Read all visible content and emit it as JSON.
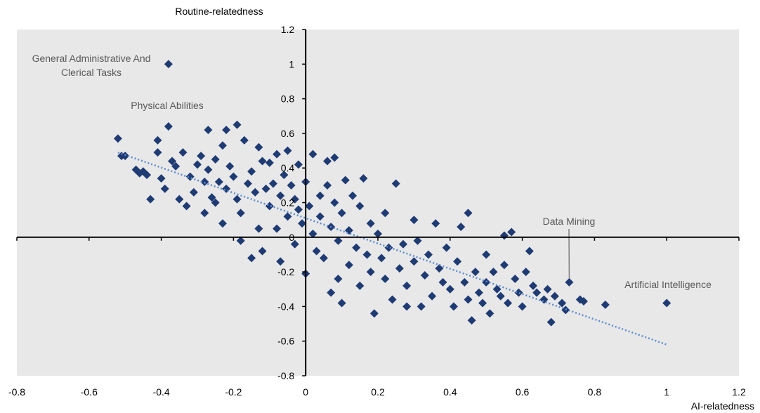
{
  "chart_data": {
    "type": "scatter",
    "xlabel": "AI-relatedness",
    "ylabel": "Routine-relatedness",
    "xlim": [
      -0.8,
      1.2
    ],
    "ylim": [
      -0.8,
      1.2
    ],
    "x_ticks": [
      "-0.8",
      "-0.6",
      "-0.4",
      "-0.2",
      "0",
      "0.2",
      "0.4",
      "0.6",
      "0.8",
      "1",
      "1.2"
    ],
    "y_ticks": [
      "1.2",
      "1",
      "0.8",
      "0.6",
      "0.4",
      "0.2",
      "0",
      "-0.2",
      "-0.4",
      "-0.6",
      "-0.8"
    ],
    "grid": false,
    "background_color": "#e8e8e8",
    "marker_color": "#1f3b73",
    "trendline": {
      "style": "dotted",
      "color": "#5b8bd0",
      "x_start": -0.52,
      "y_start": 0.49,
      "x_end": 1.0,
      "y_end": -0.62
    },
    "annotations": [
      {
        "text": "General Administrative And Clerical Tasks",
        "lines": [
          "General Administrative And",
          "Clerical Tasks"
        ],
        "x": -0.38,
        "y": 1.0
      },
      {
        "text": "Physical Abilities",
        "lines": [
          "Physical Abilities"
        ],
        "x": -0.38,
        "y": 0.64
      },
      {
        "text": "Data Mining",
        "lines": [
          "Data Mining"
        ],
        "x": 0.73,
        "y": -0.26
      },
      {
        "text": "Artificial Intelligence",
        "lines": [
          "Artificial Intelligence"
        ],
        "x": 1.0,
        "y": -0.38
      }
    ],
    "points": [
      [
        -0.38,
        1.0
      ],
      [
        -0.38,
        0.64
      ],
      [
        0.73,
        -0.26
      ],
      [
        1.0,
        -0.38
      ],
      [
        -0.52,
        0.57
      ],
      [
        -0.51,
        0.47
      ],
      [
        -0.5,
        0.47
      ],
      [
        -0.47,
        0.39
      ],
      [
        -0.46,
        0.37
      ],
      [
        -0.45,
        0.38
      ],
      [
        -0.44,
        0.36
      ],
      [
        -0.43,
        0.22
      ],
      [
        -0.41,
        0.49
      ],
      [
        -0.41,
        0.56
      ],
      [
        -0.4,
        0.34
      ],
      [
        -0.39,
        0.28
      ],
      [
        -0.37,
        0.44
      ],
      [
        -0.36,
        0.41
      ],
      [
        -0.35,
        0.22
      ],
      [
        -0.34,
        0.49
      ],
      [
        -0.33,
        0.18
      ],
      [
        -0.32,
        0.35
      ],
      [
        -0.31,
        0.26
      ],
      [
        -0.3,
        0.42
      ],
      [
        -0.29,
        0.47
      ],
      [
        -0.28,
        0.14
      ],
      [
        -0.28,
        0.32
      ],
      [
        -0.27,
        0.62
      ],
      [
        -0.27,
        0.39
      ],
      [
        -0.26,
        0.23
      ],
      [
        -0.25,
        0.2
      ],
      [
        -0.25,
        0.45
      ],
      [
        -0.24,
        0.32
      ],
      [
        -0.23,
        0.08
      ],
      [
        -0.23,
        0.53
      ],
      [
        -0.22,
        0.62
      ],
      [
        -0.22,
        0.28
      ],
      [
        -0.21,
        0.41
      ],
      [
        -0.2,
        0.35
      ],
      [
        -0.19,
        0.65
      ],
      [
        -0.19,
        0.22
      ],
      [
        -0.18,
        0.14
      ],
      [
        -0.18,
        -0.02
      ],
      [
        -0.17,
        0.56
      ],
      [
        -0.16,
        0.31
      ],
      [
        -0.15,
        0.38
      ],
      [
        -0.15,
        -0.12
      ],
      [
        -0.14,
        0.26
      ],
      [
        -0.13,
        0.52
      ],
      [
        -0.13,
        0.05
      ],
      [
        -0.12,
        0.44
      ],
      [
        -0.12,
        -0.08
      ],
      [
        -0.11,
        0.28
      ],
      [
        -0.1,
        0.18
      ],
      [
        -0.1,
        0.43
      ],
      [
        -0.09,
        0.31
      ],
      [
        -0.08,
        0.48
      ],
      [
        -0.08,
        0.05
      ],
      [
        -0.07,
        0.24
      ],
      [
        -0.07,
        -0.14
      ],
      [
        -0.06,
        0.36
      ],
      [
        -0.05,
        0.5
      ],
      [
        -0.05,
        0.12
      ],
      [
        -0.04,
        0.3
      ],
      [
        -0.03,
        0.22
      ],
      [
        -0.03,
        -0.04
      ],
      [
        -0.02,
        0.42
      ],
      [
        -0.02,
        0.16
      ],
      [
        -0.01,
        0.08
      ],
      [
        0.0,
        -0.21
      ],
      [
        0.0,
        0.32
      ],
      [
        0.01,
        0.18
      ],
      [
        0.02,
        0.02
      ],
      [
        0.02,
        0.48
      ],
      [
        0.03,
        -0.08
      ],
      [
        0.04,
        0.24
      ],
      [
        0.04,
        0.12
      ],
      [
        0.05,
        -0.12
      ],
      [
        0.06,
        0.44
      ],
      [
        0.06,
        0.3
      ],
      [
        0.07,
        0.06
      ],
      [
        0.07,
        -0.32
      ],
      [
        0.08,
        0.2
      ],
      [
        0.08,
        0.46
      ],
      [
        0.09,
        -0.02
      ],
      [
        0.09,
        -0.24
      ],
      [
        0.1,
        0.14
      ],
      [
        0.1,
        -0.38
      ],
      [
        0.11,
        0.33
      ],
      [
        0.12,
        0.04
      ],
      [
        0.12,
        -0.16
      ],
      [
        0.13,
        0.24
      ],
      [
        0.14,
        -0.06
      ],
      [
        0.15,
        0.18
      ],
      [
        0.15,
        -0.28
      ],
      [
        0.16,
        0.34
      ],
      [
        0.17,
        -0.1
      ],
      [
        0.18,
        0.08
      ],
      [
        0.18,
        -0.2
      ],
      [
        0.19,
        -0.44
      ],
      [
        0.2,
        0.02
      ],
      [
        0.21,
        -0.12
      ],
      [
        0.22,
        -0.24
      ],
      [
        0.22,
        0.14
      ],
      [
        0.23,
        -0.06
      ],
      [
        0.24,
        -0.36
      ],
      [
        0.25,
        0.31
      ],
      [
        0.26,
        -0.18
      ],
      [
        0.27,
        -0.04
      ],
      [
        0.28,
        -0.28
      ],
      [
        0.28,
        -0.4
      ],
      [
        0.3,
        -0.14
      ],
      [
        0.3,
        0.1
      ],
      [
        0.31,
        -0.02
      ],
      [
        0.32,
        -0.4
      ],
      [
        0.33,
        -0.22
      ],
      [
        0.34,
        -0.1
      ],
      [
        0.35,
        -0.34
      ],
      [
        0.36,
        0.08
      ],
      [
        0.37,
        -0.18
      ],
      [
        0.38,
        -0.26
      ],
      [
        0.39,
        -0.06
      ],
      [
        0.4,
        -0.3
      ],
      [
        0.41,
        -0.4
      ],
      [
        0.42,
        -0.14
      ],
      [
        0.43,
        0.06
      ],
      [
        0.44,
        -0.26
      ],
      [
        0.45,
        0.14
      ],
      [
        0.45,
        -0.36
      ],
      [
        0.46,
        -0.48
      ],
      [
        0.47,
        -0.2
      ],
      [
        0.48,
        -0.32
      ],
      [
        0.49,
        -0.38
      ],
      [
        0.5,
        -0.1
      ],
      [
        0.5,
        -0.26
      ],
      [
        0.51,
        -0.44
      ],
      [
        0.52,
        -0.2
      ],
      [
        0.53,
        -0.3
      ],
      [
        0.54,
        -0.34
      ],
      [
        0.55,
        -0.16
      ],
      [
        0.55,
        0.01
      ],
      [
        0.56,
        -0.38
      ],
      [
        0.57,
        0.03
      ],
      [
        0.58,
        -0.24
      ],
      [
        0.59,
        -0.32
      ],
      [
        0.6,
        -0.4
      ],
      [
        0.61,
        -0.2
      ],
      [
        0.62,
        -0.08
      ],
      [
        0.63,
        -0.28
      ],
      [
        0.64,
        -0.32
      ],
      [
        0.66,
        -0.36
      ],
      [
        0.67,
        -0.3
      ],
      [
        0.68,
        -0.49
      ],
      [
        0.69,
        -0.34
      ],
      [
        0.71,
        -0.38
      ],
      [
        0.72,
        -0.42
      ],
      [
        0.76,
        -0.36
      ],
      [
        0.77,
        -0.37
      ],
      [
        0.83,
        -0.39
      ]
    ]
  }
}
